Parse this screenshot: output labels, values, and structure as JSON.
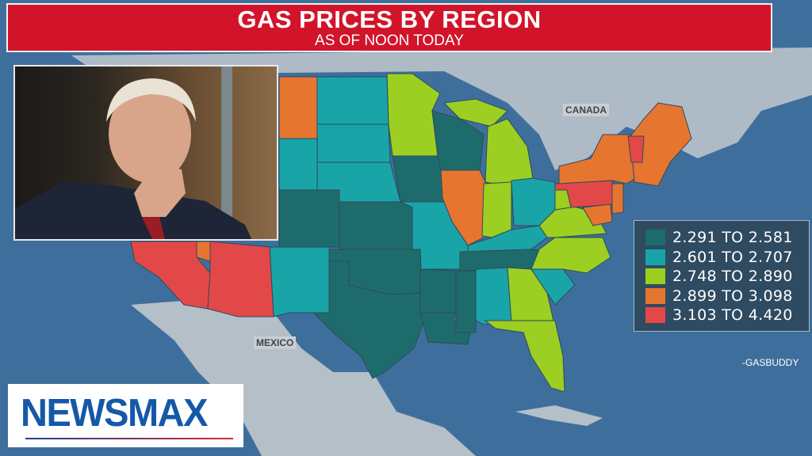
{
  "header": {
    "title": "GAS PRICES BY REGION",
    "subtitle": "AS OF NOON TODAY"
  },
  "map_labels": {
    "canada": "CANADA",
    "mexico": "MEXICO"
  },
  "legend": {
    "items": [
      {
        "label": "2.291 TO 2.581",
        "color": "#1e6b6c"
      },
      {
        "label": "2.601 TO 2.707",
        "color": "#19a4a8"
      },
      {
        "label": "2.748 TO 2.890",
        "color": "#9ccf22"
      },
      {
        "label": "2.899 TO 3.098",
        "color": "#e67530"
      },
      {
        "label": "3.103 TO 4.420",
        "color": "#e34848"
      }
    ]
  },
  "source": "-GASBUDDY",
  "logo": {
    "text": "NEWSMAX"
  },
  "colors": {
    "ocean": "#3e6f9c",
    "land": "#b8c3cc",
    "banner": "#d2142a",
    "brand_blue": "#1558a8"
  }
}
